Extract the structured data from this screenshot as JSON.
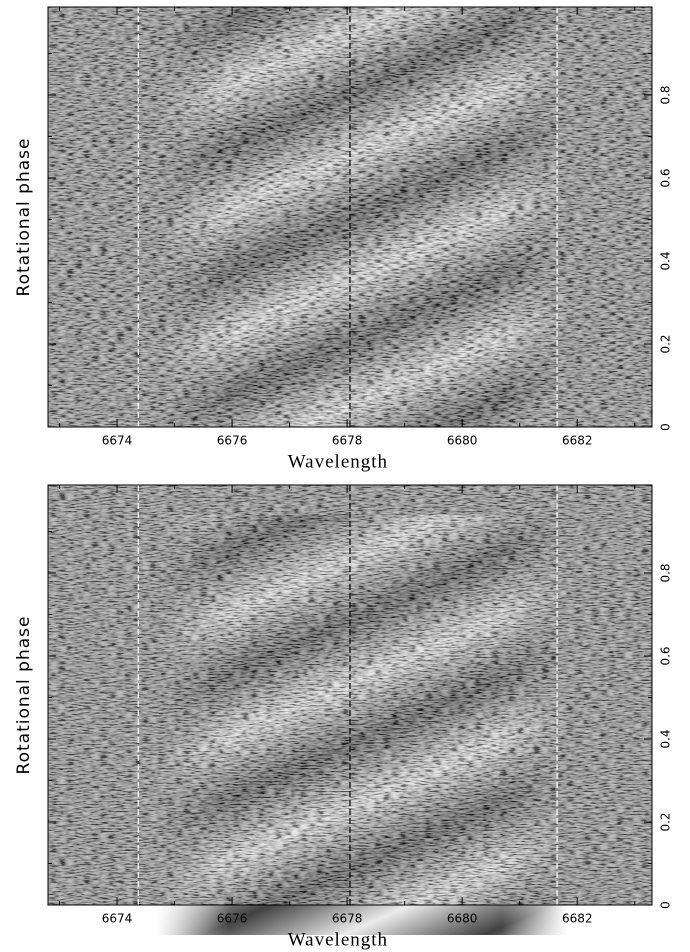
{
  "chart_data": [
    {
      "type": "image",
      "xlabel": "Wavelength",
      "ylabel": "Rotational phase",
      "xlim": [
        6672.8,
        6683.3
      ],
      "ylim": [
        0,
        1.012
      ],
      "xticks": [
        6674,
        6676,
        6678,
        6680,
        6682
      ],
      "xminorticks": [
        6673,
        6675,
        6677,
        6679,
        6681,
        6683
      ],
      "yticks": [
        0,
        0.2,
        0.4,
        0.6,
        0.8
      ],
      "yminorticks": [
        0.1,
        0.3,
        0.5,
        0.7,
        0.9
      ],
      "vlines": [
        {
          "x": 6674.37,
          "color": "#ffffff"
        },
        {
          "x": 6678.05,
          "color": "#000000"
        },
        {
          "x": 6681.65,
          "color": "#ffffff"
        }
      ]
    },
    {
      "type": "image",
      "xlabel": "Wavelength",
      "ylabel": "Rotational phase",
      "xlim": [
        6672.8,
        6683.3
      ],
      "ylim": [
        0,
        1.012
      ],
      "xticks": [
        6674,
        6676,
        6678,
        6680,
        6682
      ],
      "xminorticks": [
        6673,
        6675,
        6677,
        6679,
        6681,
        6683
      ],
      "yticks": [
        0,
        0.2,
        0.4,
        0.6,
        0.8
      ],
      "yminorticks": [
        0.1,
        0.3,
        0.5,
        0.7,
        0.9
      ],
      "vlines": [
        {
          "x": 6674.37,
          "color": "#ffffff"
        },
        {
          "x": 6678.05,
          "color": "#000000"
        },
        {
          "x": 6681.65,
          "color": "#ffffff"
        }
      ]
    }
  ]
}
